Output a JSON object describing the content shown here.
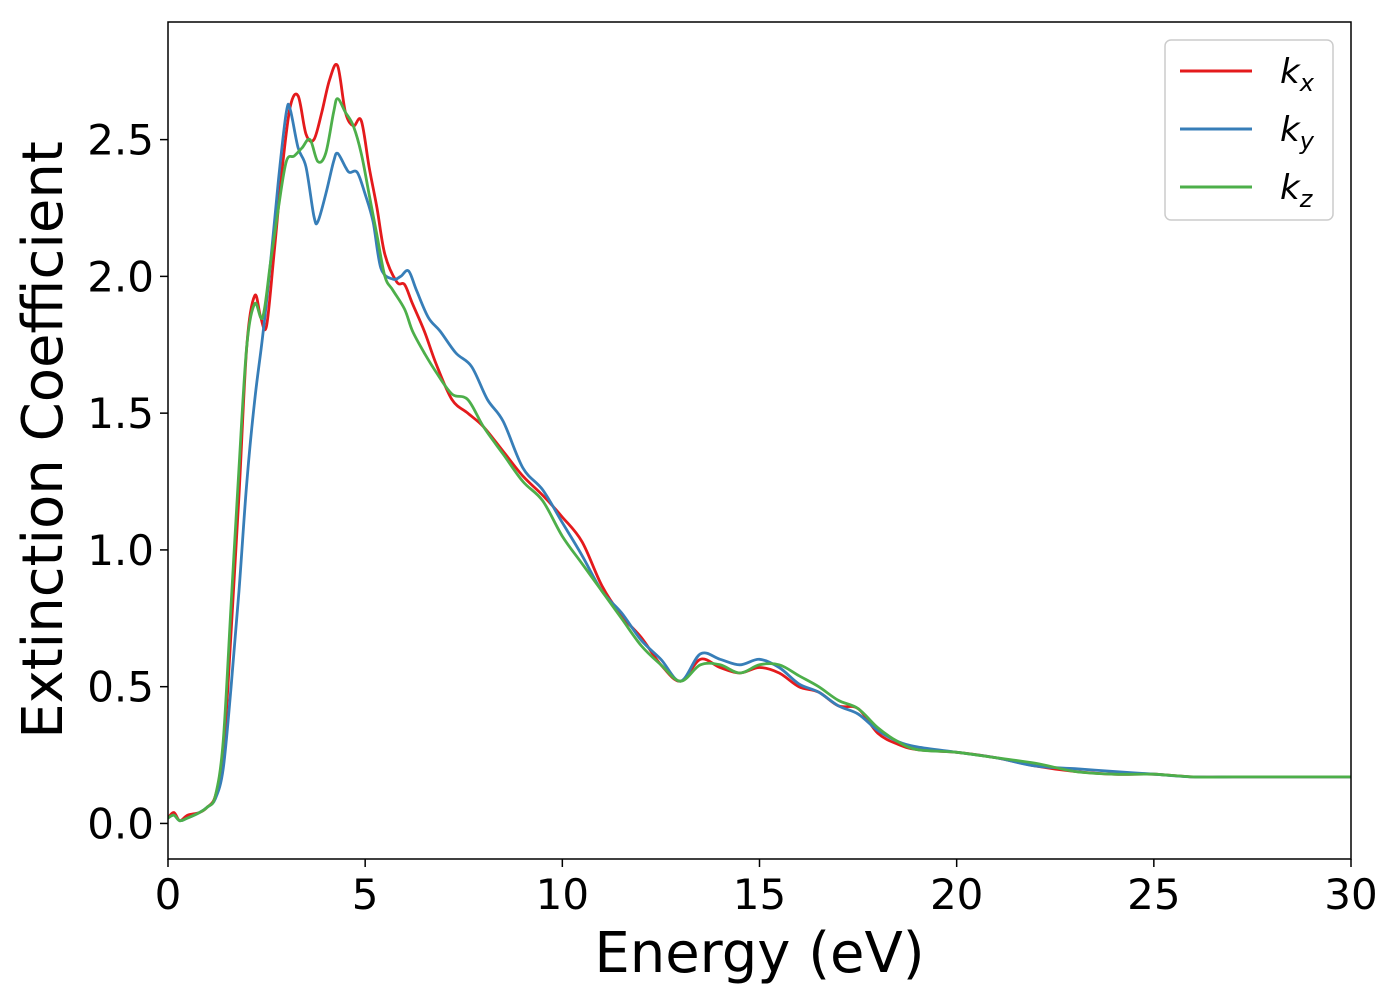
{
  "chart_data": {
    "type": "line",
    "xlabel": "Energy (eV)",
    "ylabel": "Extinction Coefficient",
    "xlim": [
      0,
      30
    ],
    "ylim": [
      -0.13,
      2.93
    ],
    "xticks": [
      0,
      5,
      10,
      15,
      20,
      25,
      30
    ],
    "xtick_labels": [
      "0",
      "5",
      "10",
      "15",
      "20",
      "25",
      "30"
    ],
    "yticks": [
      0.0,
      0.5,
      1.0,
      1.5,
      2.0,
      2.5
    ],
    "ytick_labels": [
      "0.0",
      "0.5",
      "1.0",
      "1.5",
      "2.0",
      "2.5"
    ],
    "grid": false,
    "legend_position": "top-right",
    "series": [
      {
        "name": "kx",
        "base": "k",
        "sub": "x",
        "color": "#e41a1c",
        "x": [
          0.0,
          0.15,
          0.3,
          0.5,
          0.8,
          1.0,
          1.2,
          1.4,
          1.6,
          1.8,
          2.0,
          2.2,
          2.35,
          2.5,
          2.7,
          2.9,
          3.1,
          3.3,
          3.5,
          3.7,
          3.9,
          4.1,
          4.3,
          4.5,
          4.7,
          4.9,
          5.1,
          5.3,
          5.5,
          5.8,
          6.0,
          6.2,
          6.5,
          6.8,
          7.2,
          7.6,
          8.0,
          8.5,
          9.0,
          9.5,
          10.0,
          10.5,
          11.0,
          11.5,
          12.0,
          12.5,
          13.0,
          13.5,
          14.0,
          14.5,
          15.0,
          15.5,
          16.0,
          16.5,
          17.0,
          17.5,
          18.0,
          18.5,
          19.0,
          20.0,
          21.0,
          22.0,
          23.0,
          24.0,
          25.0,
          26.0,
          27.0,
          28.0,
          29.0,
          30.0
        ],
        "y": [
          0.02,
          0.04,
          0.01,
          0.03,
          0.04,
          0.06,
          0.1,
          0.25,
          0.7,
          1.2,
          1.75,
          1.93,
          1.85,
          1.82,
          2.1,
          2.4,
          2.62,
          2.66,
          2.52,
          2.5,
          2.6,
          2.72,
          2.77,
          2.6,
          2.55,
          2.57,
          2.4,
          2.25,
          2.08,
          1.98,
          1.97,
          1.9,
          1.8,
          1.68,
          1.55,
          1.5,
          1.45,
          1.36,
          1.27,
          1.2,
          1.12,
          1.03,
          0.87,
          0.76,
          0.68,
          0.58,
          0.52,
          0.6,
          0.57,
          0.55,
          0.57,
          0.55,
          0.5,
          0.48,
          0.43,
          0.42,
          0.33,
          0.29,
          0.27,
          0.26,
          0.24,
          0.21,
          0.19,
          0.18,
          0.18,
          0.17,
          0.17,
          0.17,
          0.17,
          0.17
        ]
      },
      {
        "name": "ky",
        "base": "k",
        "sub": "y",
        "color": "#377eb8",
        "x": [
          0.0,
          0.15,
          0.3,
          0.5,
          0.8,
          1.0,
          1.2,
          1.4,
          1.6,
          1.8,
          2.0,
          2.2,
          2.4,
          2.6,
          2.8,
          3.0,
          3.1,
          3.3,
          3.5,
          3.7,
          3.8,
          4.0,
          4.2,
          4.3,
          4.5,
          4.6,
          4.8,
          5.0,
          5.2,
          5.4,
          5.7,
          5.9,
          6.1,
          6.3,
          6.6,
          6.9,
          7.3,
          7.7,
          8.1,
          8.5,
          9.0,
          9.5,
          10.0,
          10.5,
          11.0,
          11.5,
          12.0,
          12.5,
          13.0,
          13.5,
          14.0,
          14.5,
          15.0,
          15.5,
          16.0,
          16.5,
          17.0,
          17.5,
          18.0,
          18.5,
          19.0,
          20.0,
          21.0,
          22.0,
          23.0,
          24.0,
          25.0,
          26.0,
          27.0,
          28.0,
          29.0,
          30.0
        ],
        "y": [
          0.02,
          0.03,
          0.01,
          0.02,
          0.04,
          0.06,
          0.09,
          0.2,
          0.5,
          0.85,
          1.25,
          1.55,
          1.78,
          2.05,
          2.35,
          2.6,
          2.61,
          2.47,
          2.4,
          2.22,
          2.2,
          2.3,
          2.42,
          2.45,
          2.4,
          2.38,
          2.38,
          2.3,
          2.2,
          2.03,
          1.99,
          2.0,
          2.02,
          1.95,
          1.85,
          1.8,
          1.72,
          1.67,
          1.55,
          1.47,
          1.3,
          1.22,
          1.1,
          0.98,
          0.85,
          0.77,
          0.67,
          0.6,
          0.52,
          0.62,
          0.6,
          0.58,
          0.6,
          0.57,
          0.51,
          0.48,
          0.43,
          0.4,
          0.34,
          0.3,
          0.28,
          0.26,
          0.24,
          0.21,
          0.2,
          0.19,
          0.18,
          0.17,
          0.17,
          0.17,
          0.17,
          0.17
        ]
      },
      {
        "name": "kz",
        "base": "k",
        "sub": "z",
        "color": "#4daf4a",
        "x": [
          0.0,
          0.15,
          0.3,
          0.5,
          0.8,
          1.0,
          1.2,
          1.4,
          1.6,
          1.8,
          2.0,
          2.2,
          2.4,
          2.6,
          2.8,
          3.0,
          3.2,
          3.4,
          3.6,
          3.8,
          4.0,
          4.2,
          4.3,
          4.5,
          4.7,
          4.9,
          5.1,
          5.3,
          5.5,
          5.7,
          6.0,
          6.2,
          6.5,
          6.8,
          7.2,
          7.6,
          8.0,
          8.5,
          9.0,
          9.5,
          10.0,
          10.5,
          11.0,
          11.5,
          12.0,
          12.5,
          13.0,
          13.5,
          14.0,
          14.5,
          15.0,
          15.5,
          16.0,
          16.5,
          17.0,
          17.5,
          18.0,
          18.5,
          19.0,
          20.0,
          21.0,
          22.0,
          23.0,
          24.0,
          25.0,
          26.0,
          27.0,
          28.0,
          29.0,
          30.0
        ],
        "y": [
          0.02,
          0.03,
          0.01,
          0.02,
          0.04,
          0.06,
          0.1,
          0.3,
          0.8,
          1.3,
          1.75,
          1.9,
          1.85,
          2.05,
          2.25,
          2.42,
          2.44,
          2.47,
          2.5,
          2.42,
          2.45,
          2.6,
          2.65,
          2.6,
          2.55,
          2.45,
          2.3,
          2.15,
          2.0,
          1.95,
          1.88,
          1.8,
          1.72,
          1.65,
          1.57,
          1.55,
          1.45,
          1.35,
          1.25,
          1.18,
          1.05,
          0.95,
          0.85,
          0.75,
          0.65,
          0.58,
          0.52,
          0.58,
          0.58,
          0.55,
          0.58,
          0.58,
          0.54,
          0.5,
          0.45,
          0.42,
          0.35,
          0.3,
          0.27,
          0.26,
          0.24,
          0.22,
          0.19,
          0.18,
          0.18,
          0.17,
          0.17,
          0.17,
          0.17,
          0.17
        ]
      }
    ]
  }
}
